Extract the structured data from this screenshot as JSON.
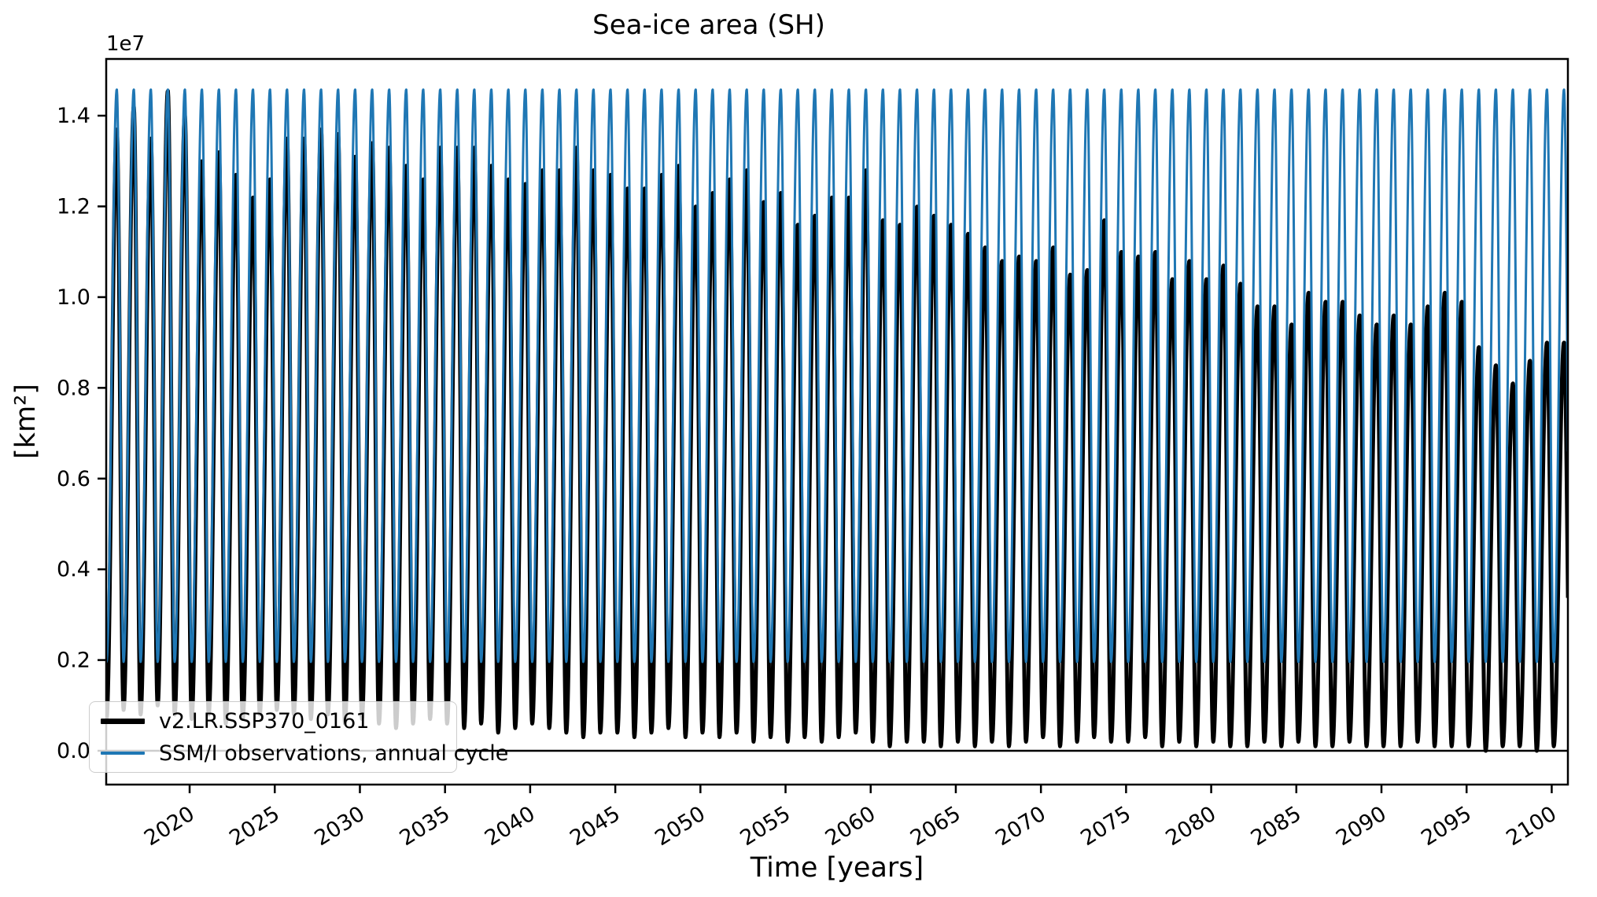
{
  "title": "Sea-ice area (SH)",
  "axes": {
    "xlabel": "Time [years]",
    "ylabel": "[km²]",
    "offset_text": "1e7"
  },
  "legend": {
    "items": [
      {
        "label": "v2.LR.SSP370_0161",
        "color": "#000000",
        "thickness": 7
      },
      {
        "label": "SSM/I observations, annual cycle",
        "color": "#1f77b4",
        "thickness": 3.5
      }
    ]
  },
  "colors": {
    "model_line": "#000000",
    "obs_line": "#1f77b4",
    "axis": "#000000",
    "background": "#ffffff",
    "legend_border": "#cccccc"
  },
  "chart_data": {
    "type": "line",
    "title": "Sea-ice area (SH)",
    "xlabel": "Time [years]",
    "ylabel": "[km²]",
    "y_offset_factor": "1e7",
    "grid": false,
    "legend_position": "lower left",
    "zero_line": true,
    "xlim": [
      2015.1,
      2100.95
    ],
    "ylim_1e7": [
      -0.0745,
      1.525
    ],
    "x_ticks": [
      2020,
      2025,
      2030,
      2035,
      2040,
      2045,
      2050,
      2055,
      2060,
      2065,
      2070,
      2075,
      2080,
      2085,
      2090,
      2095,
      2100
    ],
    "x_tick_rotation_deg": -32,
    "y_ticks_1e7": [
      0.0,
      0.2,
      0.4,
      0.6,
      0.8,
      1.0,
      1.2,
      1.4
    ],
    "y_tick_labels": [
      "0.0",
      "0.2",
      "0.4",
      "0.6",
      "0.8",
      "1.0",
      "1.2",
      "1.4"
    ],
    "seasonal_phase": {
      "min_frac": 0.12,
      "max_frac": 0.72
    },
    "series": [
      {
        "name": "v2.LR.SSP370_0161",
        "color": "#000000",
        "linewidth": 5,
        "year_start": 2015,
        "year_end": 2100,
        "annual_max_1e7": [
          1.37,
          1.42,
          1.35,
          1.455,
          1.4,
          1.3,
          1.32,
          1.27,
          1.22,
          1.26,
          1.35,
          1.35,
          1.37,
          1.36,
          1.31,
          1.34,
          1.33,
          1.29,
          1.26,
          1.33,
          1.33,
          1.33,
          1.29,
          1.26,
          1.25,
          1.28,
          1.28,
          1.33,
          1.28,
          1.27,
          1.24,
          1.24,
          1.27,
          1.29,
          1.2,
          1.23,
          1.26,
          1.28,
          1.21,
          1.23,
          1.16,
          1.18,
          1.22,
          1.22,
          1.28,
          1.17,
          1.16,
          1.2,
          1.18,
          1.16,
          1.14,
          1.11,
          1.08,
          1.09,
          1.08,
          1.11,
          1.05,
          1.06,
          1.17,
          1.1,
          1.09,
          1.1,
          1.04,
          1.08,
          1.04,
          1.07,
          1.03,
          0.98,
          0.98,
          0.94,
          1.01,
          0.99,
          0.99,
          0.96,
          0.94,
          0.96,
          0.94,
          0.98,
          1.01,
          0.99,
          0.89,
          0.85,
          0.81,
          0.86,
          0.9,
          0.9
        ],
        "annual_min_1e7": [
          0.07,
          0.09,
          0.08,
          0.1,
          0.08,
          0.07,
          0.08,
          0.06,
          0.07,
          0.08,
          0.09,
          0.08,
          0.07,
          0.08,
          0.06,
          0.07,
          0.06,
          0.05,
          0.06,
          0.07,
          0.06,
          0.05,
          0.06,
          0.04,
          0.05,
          0.06,
          0.05,
          0.04,
          0.03,
          0.04,
          0.04,
          0.03,
          0.04,
          0.05,
          0.03,
          0.04,
          0.03,
          0.04,
          0.02,
          0.03,
          0.02,
          0.03,
          0.02,
          0.03,
          0.04,
          0.02,
          0.01,
          0.02,
          0.02,
          0.01,
          0.02,
          0.01,
          0.02,
          0.01,
          0.02,
          0.03,
          0.01,
          0.02,
          0.03,
          0.02,
          0.02,
          0.03,
          0.01,
          0.02,
          0.01,
          0.02,
          0.01,
          0.01,
          0.02,
          0.01,
          0.02,
          0.01,
          0.01,
          0.02,
          0.01,
          0.01,
          0.01,
          0.02,
          0.01,
          0.01,
          0.01,
          0.0,
          0.01,
          0.01,
          0.0,
          0.01
        ]
      },
      {
        "name": "SSM/I observations, annual cycle",
        "color": "#1f77b4",
        "linewidth": 3,
        "year_start": 2015,
        "year_end": 2100,
        "annual_max_1e7_constant": 1.458,
        "annual_min_1e7_constant": 0.196
      }
    ]
  }
}
